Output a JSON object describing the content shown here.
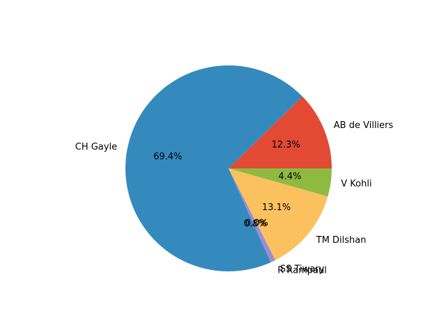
{
  "chart_data": {
    "type": "pie",
    "start_angle_deg": 0,
    "direction": "counterclockwise",
    "slices": [
      {
        "label": "AB de Villiers",
        "value": 12.3,
        "pct_label": "12.3%",
        "color": "#E24A33"
      },
      {
        "label": "CH Gayle",
        "value": 69.4,
        "pct_label": "69.4%",
        "color": "#348ABD"
      },
      {
        "label": "R Rampaul",
        "value": 0.8,
        "pct_label": "0.8%",
        "color": "#988ED5"
      },
      {
        "label": "SS Tiwary",
        "value": 0.0,
        "pct_label": "0.0%",
        "color": "#777777"
      },
      {
        "label": "TM Dilshan",
        "value": 13.1,
        "pct_label": "13.1%",
        "color": "#FBC15E"
      },
      {
        "label": "V Kohli",
        "value": 4.4,
        "pct_label": "4.4%",
        "color": "#8EBA42"
      }
    ]
  }
}
